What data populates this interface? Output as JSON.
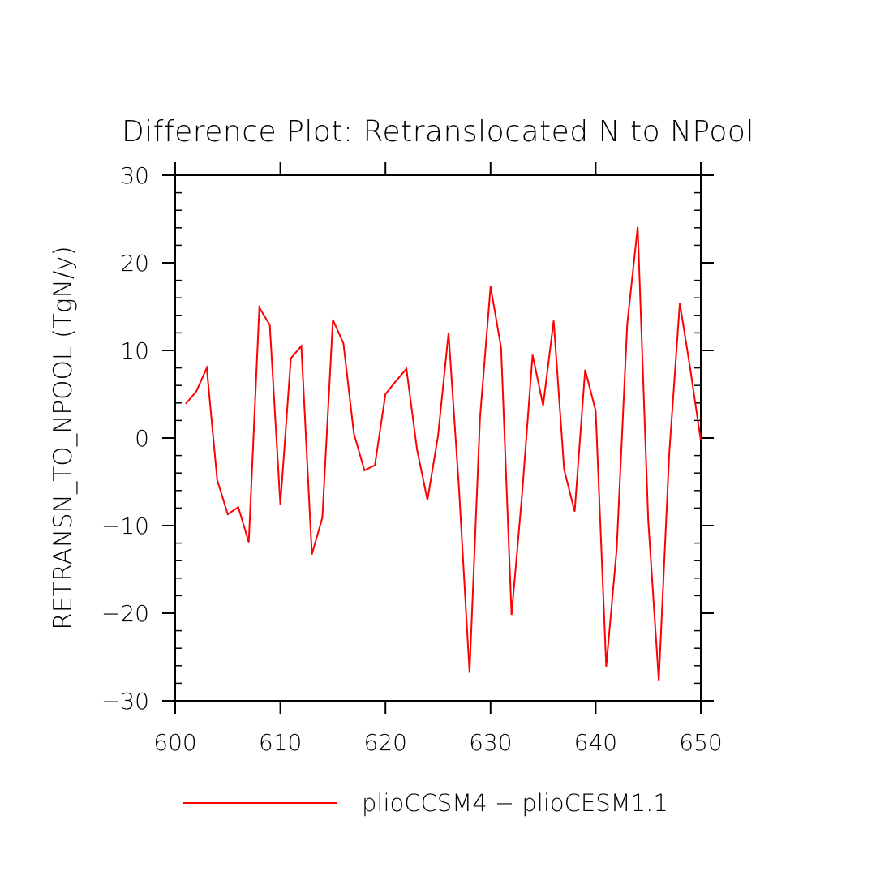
{
  "chart_data": {
    "type": "line",
    "title": "Difference Plot: Retranslocated N to NPool",
    "ylabel": "RETRANSN_TO_NPOOL  (TgN/y)",
    "xlabel": "",
    "xlim": [
      600,
      650
    ],
    "ylim": [
      -30,
      30
    ],
    "x_ticks": [
      600,
      610,
      620,
      630,
      640,
      650
    ],
    "y_ticks": [
      -30,
      -20,
      -10,
      0,
      10,
      20,
      30
    ],
    "x_tick_labels": [
      "600",
      "610",
      "620",
      "630",
      "640",
      "650"
    ],
    "y_tick_labels": [
      "−30",
      "−20",
      "−10",
      "0",
      "10",
      "20",
      "30"
    ],
    "grid": false,
    "legend_position": "bottom",
    "series": [
      {
        "name": "plioCCSM4 − plioCESM1.1",
        "color": "#ff0000",
        "x": [
          601,
          602,
          603,
          604,
          605,
          606,
          607,
          608,
          609,
          610,
          611,
          612,
          613,
          614,
          615,
          616,
          617,
          618,
          619,
          620,
          621,
          622,
          623,
          624,
          625,
          626,
          627,
          628,
          629,
          630,
          631,
          632,
          633,
          634,
          635,
          636,
          637,
          638,
          639,
          640,
          641,
          642,
          643,
          644,
          645,
          646,
          647,
          648,
          649,
          650
        ],
        "values": [
          3.9,
          5.3,
          8.0,
          -4.8,
          -8.7,
          -7.9,
          -11.9,
          14.9,
          12.9,
          -7.6,
          9.1,
          10.5,
          -13.3,
          -9.1,
          13.5,
          10.8,
          0.5,
          -3.7,
          -3.1,
          5.0,
          6.5,
          7.9,
          -1.3,
          -7.1,
          0.2,
          12.0,
          -5.8,
          -26.8,
          2.3,
          17.3,
          10.3,
          -20.2,
          -6.4,
          9.5,
          3.7,
          13.4,
          -3.6,
          -8.4,
          7.8,
          3.1,
          -26.1,
          -12.7,
          13.0,
          24.1,
          -9.4,
          -27.7,
          -1.8,
          15.4,
          7.9,
          -0.3
        ]
      }
    ]
  }
}
